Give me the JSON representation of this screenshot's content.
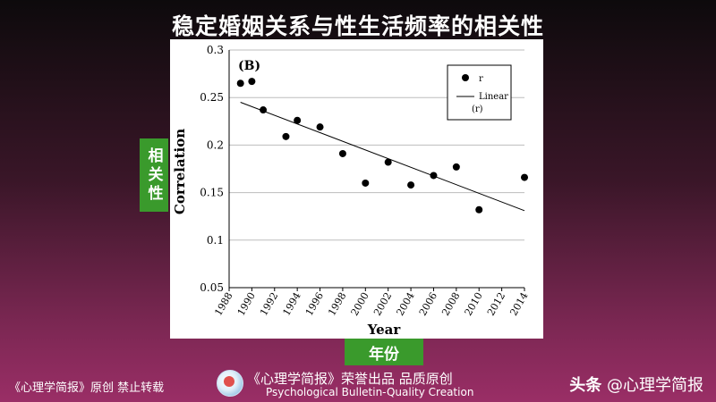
{
  "page_title": "稳定婚姻关系与性生活频率的相关性",
  "y_label_cn": "相关性",
  "x_label_cn": "年份",
  "footer": {
    "left": "《心理学简报》原创 禁止转载",
    "center_line1": "《心理学简报》荣誉出品 品质原创",
    "center_line2": "Psychological Bulletin-Quality Creation",
    "right_prefix": "头条",
    "right_handle": "@心理学简报"
  },
  "chart_data": {
    "type": "scatter",
    "panel_label": "(B)",
    "xlabel": "Year",
    "ylabel": "Correlation",
    "xlim": [
      1988,
      2014
    ],
    "ylim": [
      0.05,
      0.3
    ],
    "x_ticks": [
      "1988",
      "1990",
      "1992",
      "1994",
      "1996",
      "1998",
      "2000",
      "2002",
      "2004",
      "2006",
      "2008",
      "2010",
      "2012",
      "2014"
    ],
    "y_ticks": [
      "0.05",
      "0.1",
      "0.15",
      "0.2",
      "0.25",
      "0.3"
    ],
    "grid": true,
    "legend_position": "top-right",
    "legend": {
      "points": "r",
      "line": "Linear\n(r)"
    },
    "points": [
      {
        "x": 1989,
        "y": 0.265
      },
      {
        "x": 1990,
        "y": 0.267
      },
      {
        "x": 1991,
        "y": 0.237
      },
      {
        "x": 1993,
        "y": 0.209
      },
      {
        "x": 1994,
        "y": 0.226
      },
      {
        "x": 1996,
        "y": 0.219
      },
      {
        "x": 1998,
        "y": 0.191
      },
      {
        "x": 2000,
        "y": 0.16
      },
      {
        "x": 2002,
        "y": 0.182
      },
      {
        "x": 2004,
        "y": 0.158
      },
      {
        "x": 2006,
        "y": 0.168
      },
      {
        "x": 2008,
        "y": 0.177
      },
      {
        "x": 2010,
        "y": 0.132
      },
      {
        "x": 2014,
        "y": 0.166
      }
    ],
    "trendline": {
      "x": [
        1989,
        2014
      ],
      "y": [
        0.245,
        0.131
      ]
    },
    "colors": {
      "points": "#000000",
      "line": "#000000",
      "grid": "#bdbdbd"
    }
  }
}
